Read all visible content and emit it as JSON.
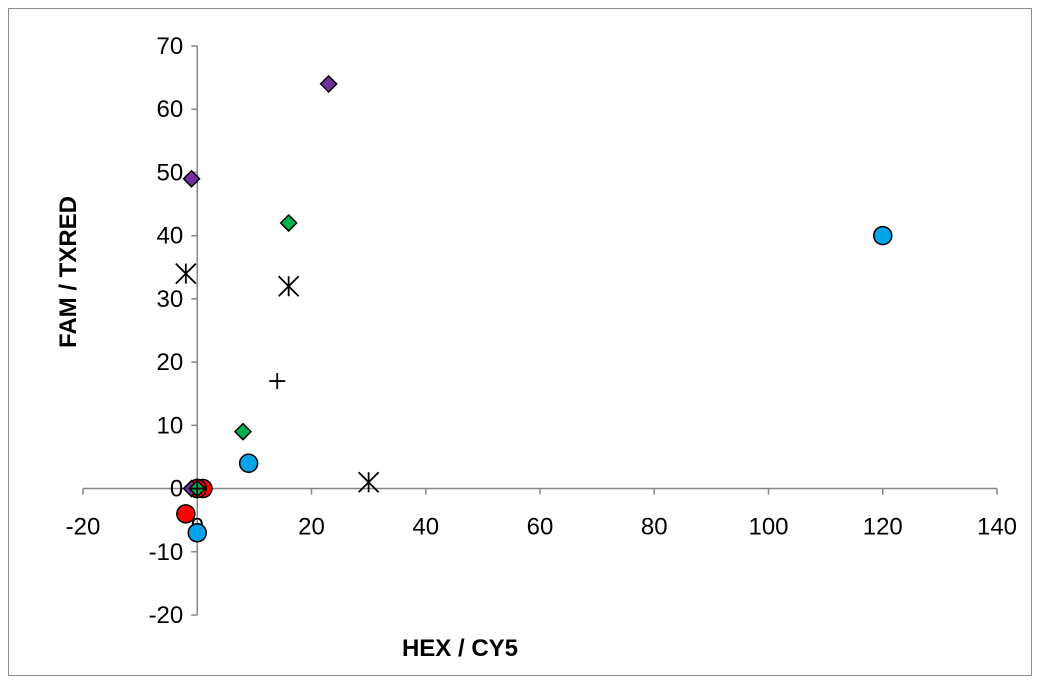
{
  "chart_data": {
    "type": "scatter",
    "title": "",
    "xlabel": "HEX / CY5",
    "ylabel": "FAM / TXRED",
    "xlim": [
      -20,
      140
    ],
    "ylim": [
      -20,
      70
    ],
    "x_ticks": [
      -20,
      0,
      20,
      40,
      60,
      80,
      100,
      120,
      140
    ],
    "y_ticks": [
      -20,
      -10,
      0,
      10,
      20,
      30,
      40,
      50,
      60,
      70
    ],
    "grid": false,
    "legend": "none",
    "series": [
      {
        "marker": "circle",
        "color": "#00a2e8",
        "points": [
          [
            120,
            40
          ],
          [
            9,
            4
          ],
          [
            0,
            -7
          ],
          [
            0,
            0
          ]
        ]
      },
      {
        "marker": "circle",
        "color": "#ff0000",
        "points": [
          [
            -2,
            -4
          ],
          [
            1,
            0
          ],
          [
            0,
            0
          ]
        ]
      },
      {
        "marker": "diamond",
        "color": "#7030a0",
        "points": [
          [
            23,
            64
          ],
          [
            -1,
            49
          ],
          [
            -1,
            0
          ]
        ]
      },
      {
        "marker": "diamond",
        "color": "#00b050",
        "points": [
          [
            16,
            42
          ],
          [
            8,
            9
          ],
          [
            0,
            0
          ]
        ]
      },
      {
        "marker": "asterisk",
        "color": "#000000",
        "points": [
          [
            -2,
            34
          ],
          [
            16,
            32
          ],
          [
            30,
            1
          ]
        ]
      },
      {
        "marker": "plus",
        "color": "#000000",
        "points": [
          [
            14,
            17
          ],
          [
            0,
            0
          ]
        ]
      }
    ]
  }
}
